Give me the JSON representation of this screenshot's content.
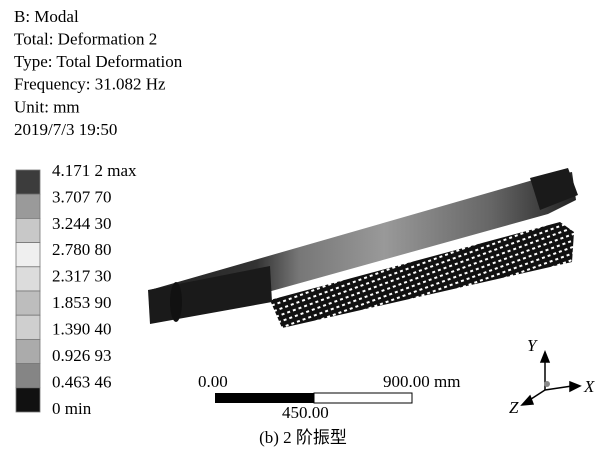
{
  "header": {
    "lines": [
      "B: Modal",
      "Total: Deformation 2",
      "Type: Total Deformation",
      "Frequency: 31.082 Hz",
      "Unit: mm",
      "2019/7/3 19:50"
    ]
  },
  "legend": {
    "labels": [
      "4.171 2 max",
      "3.707 70",
      "3.244 30",
      "2.780 80",
      "2.317 30",
      "1.853 90",
      "1.390 40",
      "0.926 93",
      "0.463 46",
      "0 min"
    ]
  },
  "scale_bar": {
    "start": "0.00",
    "end": "900.00 mm",
    "middle": "450.00"
  },
  "triad": {
    "y": "Y",
    "x": "X",
    "z": "Z"
  },
  "caption": "(b) 2 阶振型"
}
